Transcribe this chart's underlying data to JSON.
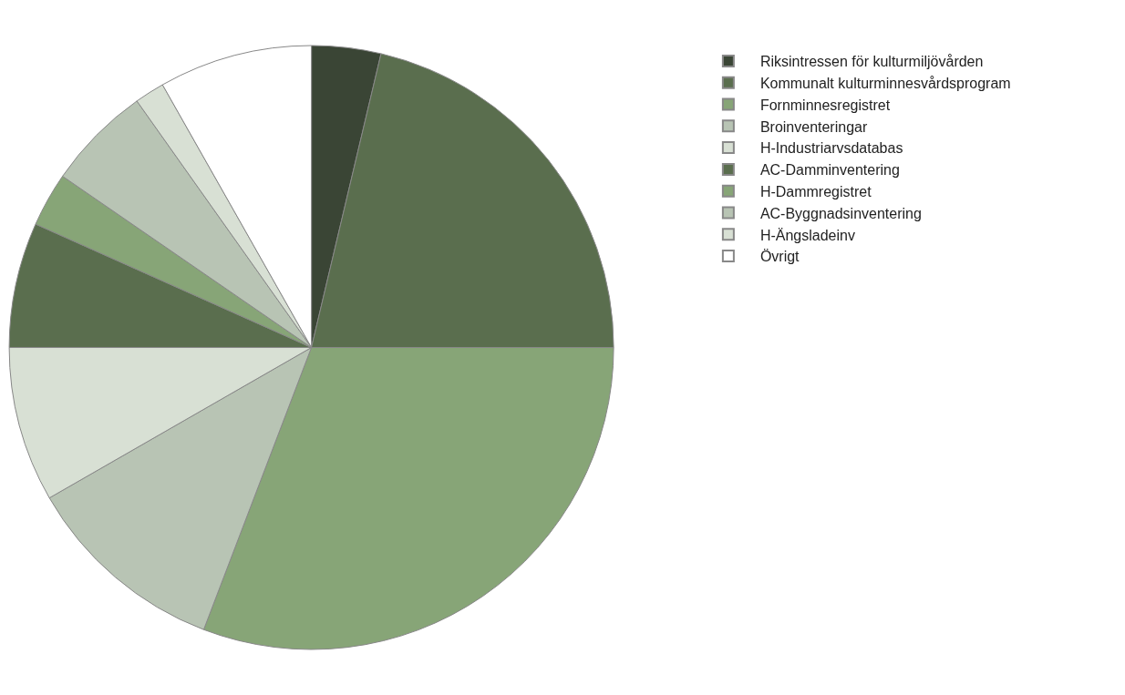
{
  "chart_data": {
    "type": "pie",
    "categories": [
      "Riksintressen för kulturmiljövården",
      "Kommunalt kulturminnesvårdsprogram",
      "Fornminnesregistret",
      "Broinventeringar",
      "H-Industriarvsdatabas",
      "AC-Damminventering",
      "H-Dammregistret",
      "AC-Byggnadsinventering",
      "H-Ängsladeinv",
      "Övrigt"
    ],
    "values": [
      3.7,
      21.3,
      30.8,
      10.9,
      8.3,
      6.7,
      2.9,
      5.6,
      1.6,
      8.2
    ],
    "colors": [
      "#3a4535",
      "#5a6e4e",
      "#87a577",
      "#b8c4b4",
      "#d8e0d4",
      "#5a6e4e",
      "#87a577",
      "#b8c4b4",
      "#d8e0d4",
      "#ffffff"
    ],
    "legend": "right"
  }
}
